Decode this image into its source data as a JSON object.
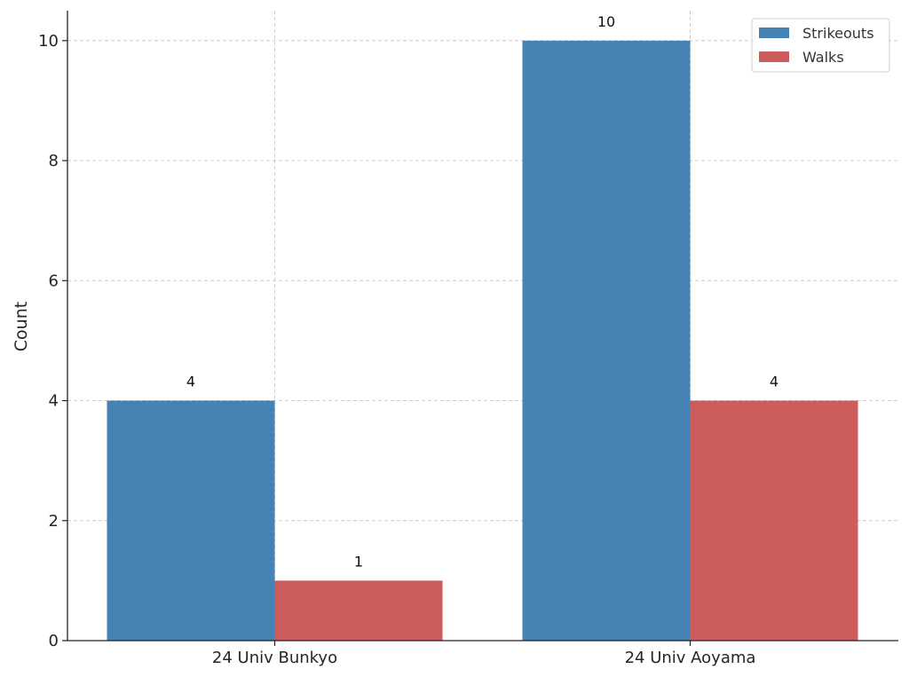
{
  "chart_data": {
    "type": "bar",
    "title": "",
    "xlabel": "",
    "ylabel": "Count",
    "categories": [
      "24 Univ Bunkyo",
      "24 Univ Aoyama"
    ],
    "series": [
      {
        "name": "Strikeouts",
        "values": [
          4,
          10
        ],
        "color": "#4682b4"
      },
      {
        "name": "Walks",
        "values": [
          1,
          4
        ],
        "color": "#cd5c5c"
      }
    ],
    "ylim": [
      0,
      10.5
    ],
    "yticks": [
      0,
      2,
      4,
      6,
      8,
      10
    ],
    "grid": true,
    "legend_position": "top-right"
  }
}
